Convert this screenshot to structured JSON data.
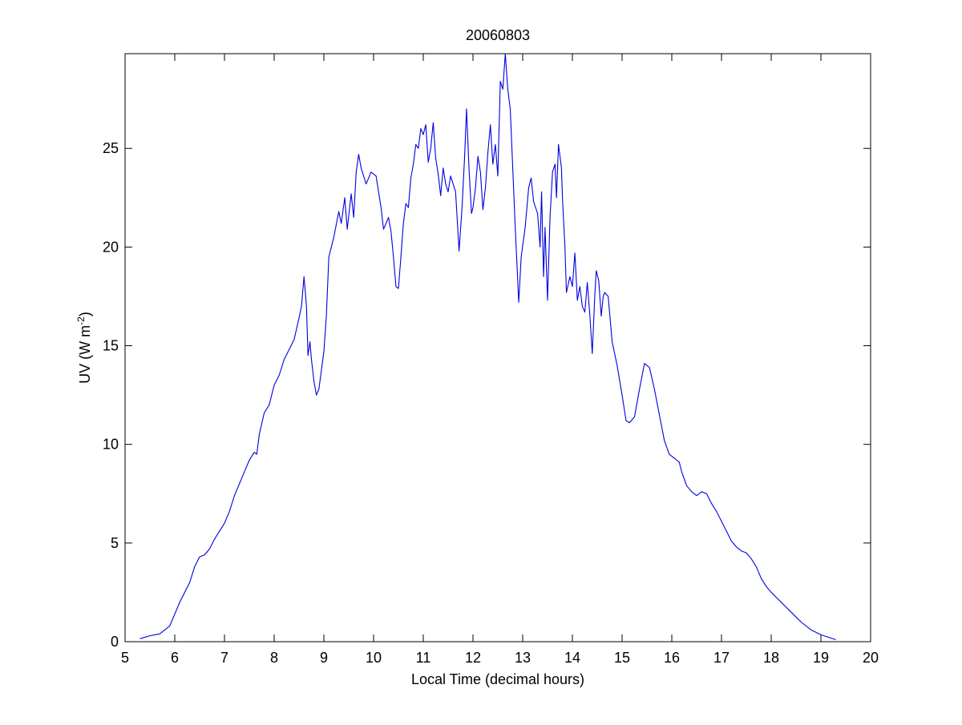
{
  "chart_data": {
    "type": "line",
    "title": "20060803",
    "xlabel": "Local Time (decimal hours)",
    "ylabel": {
      "text": "UV (W m",
      "superscript": "-2",
      "close": ")"
    },
    "xlim": [
      5,
      20
    ],
    "xticks": [
      5,
      6,
      7,
      8,
      9,
      10,
      11,
      12,
      13,
      14,
      15,
      16,
      17,
      18,
      19,
      20
    ],
    "ylim": [
      0,
      29.8
    ],
    "yticks": [
      0,
      5,
      10,
      15,
      20,
      25
    ],
    "grid": false,
    "series": [
      {
        "color": "#0000e0",
        "x": [
          5.3,
          5.5,
          5.7,
          5.9,
          6.0,
          6.1,
          6.2,
          6.3,
          6.4,
          6.5,
          6.6,
          6.7,
          6.8,
          6.9,
          7.0,
          7.1,
          7.2,
          7.3,
          7.4,
          7.5,
          7.6,
          7.65,
          7.7,
          7.8,
          7.9,
          8.0,
          8.1,
          8.2,
          8.3,
          8.4,
          8.5,
          8.55,
          8.6,
          8.65,
          8.68,
          8.72,
          8.75,
          8.8,
          8.85,
          8.9,
          9.0,
          9.05,
          9.1,
          9.2,
          9.3,
          9.35,
          9.42,
          9.47,
          9.55,
          9.6,
          9.65,
          9.7,
          9.75,
          9.85,
          9.95,
          10.05,
          10.15,
          10.2,
          10.3,
          10.35,
          10.4,
          10.45,
          10.5,
          10.55,
          10.6,
          10.65,
          10.7,
          10.75,
          10.8,
          10.85,
          10.9,
          10.95,
          11.0,
          11.05,
          11.1,
          11.15,
          11.2,
          11.25,
          11.3,
          11.35,
          11.4,
          11.45,
          11.5,
          11.55,
          11.65,
          11.72,
          11.78,
          11.83,
          11.87,
          11.92,
          11.97,
          12.0,
          12.05,
          12.1,
          12.15,
          12.2,
          12.25,
          12.3,
          12.35,
          12.4,
          12.45,
          12.5,
          12.55,
          12.6,
          12.65,
          12.7,
          12.75,
          12.8,
          12.85,
          12.92,
          12.97,
          13.05,
          13.12,
          13.17,
          13.22,
          13.3,
          13.35,
          13.38,
          13.42,
          13.45,
          13.5,
          13.55,
          13.6,
          13.65,
          13.68,
          13.72,
          13.78,
          13.8,
          13.85,
          13.88,
          13.95,
          14.0,
          14.05,
          14.1,
          14.15,
          14.2,
          14.25,
          14.3,
          14.35,
          14.4,
          14.45,
          14.48,
          14.53,
          14.58,
          14.62,
          14.65,
          14.72,
          14.8,
          14.9,
          15.0,
          15.08,
          15.15,
          15.25,
          15.35,
          15.45,
          15.5,
          15.55,
          15.65,
          15.75,
          15.85,
          15.95,
          16.05,
          16.15,
          16.2,
          16.3,
          16.4,
          16.5,
          16.6,
          16.7,
          16.8,
          16.9,
          17.0,
          17.1,
          17.2,
          17.3,
          17.4,
          17.5,
          17.6,
          17.7,
          17.8,
          17.9,
          18.0,
          18.2,
          18.4,
          18.6,
          18.8,
          19.0,
          19.3
        ],
        "values": [
          0.15,
          0.3,
          0.4,
          0.8,
          1.4,
          2.0,
          2.5,
          3.0,
          3.8,
          4.3,
          4.4,
          4.7,
          5.2,
          5.6,
          6.0,
          6.6,
          7.4,
          8.0,
          8.6,
          9.2,
          9.6,
          9.5,
          10.5,
          11.6,
          12.0,
          13.0,
          13.5,
          14.3,
          14.8,
          15.3,
          16.4,
          17.0,
          18.5,
          17.0,
          14.5,
          15.2,
          14.3,
          13.2,
          12.5,
          12.8,
          14.7,
          16.5,
          19.5,
          20.5,
          21.8,
          21.2,
          22.5,
          20.9,
          22.7,
          21.5,
          23.8,
          24.7,
          24.0,
          23.2,
          23.8,
          23.6,
          22.0,
          20.9,
          21.5,
          20.8,
          19.5,
          18.0,
          17.9,
          19.5,
          21.2,
          22.2,
          22.0,
          23.5,
          24.2,
          25.2,
          25.0,
          26.0,
          25.7,
          26.2,
          24.3,
          25.0,
          26.3,
          24.5,
          23.7,
          22.6,
          24.0,
          23.2,
          22.8,
          23.6,
          22.8,
          19.8,
          22.0,
          24.5,
          27.0,
          24.0,
          21.7,
          22.0,
          23.0,
          24.6,
          23.8,
          21.9,
          23.0,
          24.8,
          26.2,
          24.2,
          25.2,
          23.6,
          28.4,
          28.0,
          29.8,
          28.0,
          27.0,
          24.0,
          21.0,
          17.2,
          19.5,
          21.0,
          23.0,
          23.5,
          22.3,
          21.7,
          20.0,
          22.8,
          18.5,
          21.0,
          17.3,
          21.5,
          23.8,
          24.2,
          22.5,
          25.2,
          24.0,
          22.5,
          20.0,
          17.7,
          18.5,
          18.0,
          19.7,
          17.3,
          18.0,
          17.0,
          16.7,
          18.2,
          16.6,
          14.6,
          17.5,
          18.8,
          18.3,
          16.5,
          17.5,
          17.7,
          17.5,
          15.2,
          14.0,
          12.5,
          11.2,
          11.1,
          11.4,
          12.8,
          14.1,
          14.0,
          13.9,
          12.8,
          11.5,
          10.2,
          9.5,
          9.3,
          9.1,
          8.6,
          7.9,
          7.6,
          7.4,
          7.6,
          7.5,
          7.0,
          6.6,
          6.1,
          5.6,
          5.1,
          4.8,
          4.6,
          4.5,
          4.2,
          3.8,
          3.2,
          2.8,
          2.5,
          2.0,
          1.5,
          1.0,
          0.6,
          0.35,
          0.1
        ]
      }
    ]
  }
}
